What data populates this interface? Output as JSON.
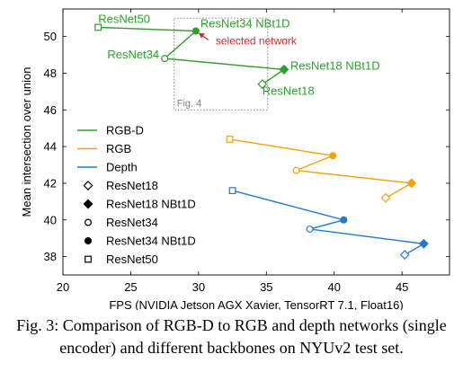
{
  "chart_data": {
    "type": "scatter",
    "xlabel": "FPS (NVIDIA Jetson AGX Xavier, TensorRT 7.1, Float16)",
    "ylabel": "Mean intersection over union",
    "xlim": [
      20,
      48.5
    ],
    "ylim": [
      37,
      51.5
    ],
    "xticks": [
      "20",
      "25",
      "30",
      "35",
      "40",
      "45"
    ],
    "yticks": [
      "38",
      "40",
      "42",
      "44",
      "46",
      "48",
      "50"
    ],
    "xtick_values": [
      20,
      25,
      30,
      35,
      40,
      45
    ],
    "ytick_values": [
      38,
      40,
      42,
      44,
      46,
      48,
      50
    ],
    "grid": false,
    "legend_position": "left",
    "legend": [
      {
        "label": "RGB-D",
        "kind": "line",
        "color": "#2ca02c"
      },
      {
        "label": "RGB",
        "kind": "line",
        "color": "#f0a30a"
      },
      {
        "label": "Depth",
        "kind": "line",
        "color": "#1f78d4"
      },
      {
        "label": "ResNet18",
        "kind": "marker",
        "marker": "diamond-open"
      },
      {
        "label": "ResNet18 NBt1D",
        "kind": "marker",
        "marker": "diamond-filled"
      },
      {
        "label": "ResNet34",
        "kind": "marker",
        "marker": "circle-open"
      },
      {
        "label": "ResNet34 NBt1D",
        "kind": "marker",
        "marker": "circle-filled"
      },
      {
        "label": "ResNet50",
        "kind": "marker",
        "marker": "square-open"
      }
    ],
    "series": [
      {
        "name": "RGB-D",
        "color": "#2ca02c",
        "points": [
          {
            "backbone": "ResNet50",
            "marker": "square-open",
            "x": 22.6,
            "y": 50.5,
            "label": "ResNet50"
          },
          {
            "backbone": "ResNet34 NBt1D",
            "marker": "circle-filled",
            "x": 29.8,
            "y": 50.3,
            "label": "ResNet34 NBt1D"
          },
          {
            "backbone": "ResNet34",
            "marker": "circle-open",
            "x": 27.5,
            "y": 48.8,
            "label": "ResNet34"
          },
          {
            "backbone": "ResNet18 NBt1D",
            "marker": "diamond-filled",
            "x": 36.3,
            "y": 48.2,
            "label": "ResNet18 NBt1D"
          },
          {
            "backbone": "ResNet18",
            "marker": "diamond-open",
            "x": 34.7,
            "y": 47.4,
            "label": "ResNet18"
          }
        ]
      },
      {
        "name": "RGB",
        "color": "#f0a30a",
        "points": [
          {
            "backbone": "ResNet50",
            "marker": "square-open",
            "x": 32.3,
            "y": 44.4
          },
          {
            "backbone": "ResNet34 NBt1D",
            "marker": "circle-filled",
            "x": 39.9,
            "y": 43.5
          },
          {
            "backbone": "ResNet34",
            "marker": "circle-open",
            "x": 37.2,
            "y": 42.7
          },
          {
            "backbone": "ResNet18 NBt1D",
            "marker": "diamond-filled",
            "x": 45.7,
            "y": 42.0
          },
          {
            "backbone": "ResNet18",
            "marker": "diamond-open",
            "x": 43.8,
            "y": 41.2
          }
        ]
      },
      {
        "name": "Depth",
        "color": "#1f78d4",
        "points": [
          {
            "backbone": "ResNet50",
            "marker": "square-open",
            "x": 32.5,
            "y": 41.6
          },
          {
            "backbone": "ResNet34 NBt1D",
            "marker": "circle-filled",
            "x": 40.7,
            "y": 40.0
          },
          {
            "backbone": "ResNet34",
            "marker": "circle-open",
            "x": 38.2,
            "y": 39.5
          },
          {
            "backbone": "ResNet18 NBt1D",
            "marker": "diamond-filled",
            "x": 46.6,
            "y": 38.7
          },
          {
            "backbone": "ResNet18",
            "marker": "diamond-open",
            "x": 45.2,
            "y": 38.1
          }
        ]
      }
    ],
    "annotations": [
      {
        "text": "selected network",
        "color": "#d62728",
        "arrow_to": {
          "x": 29.8,
          "y": 50.3
        }
      },
      {
        "text": "Fig. 4",
        "color": "#808080",
        "box_x": [
          28.2,
          35.1
        ],
        "box_y": [
          46.0,
          51.0
        ]
      }
    ]
  },
  "caption": "Fig. 3: Comparison of RGB-D to RGB and depth networks (single encoder) and different backbones on NYUv2 test set."
}
